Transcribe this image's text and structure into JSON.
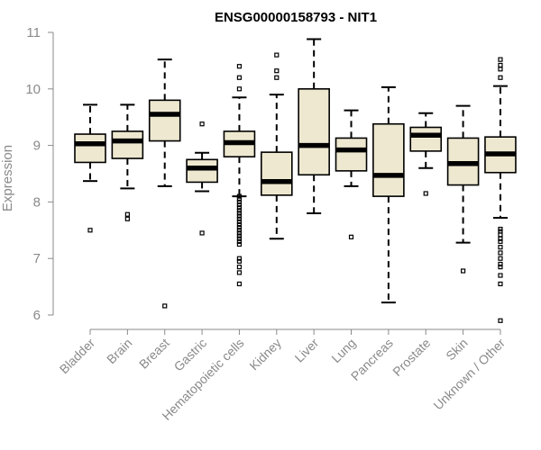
{
  "chart_data": {
    "type": "boxplot",
    "title": "ENSG00000158793 - NIT1",
    "ylabel": "Expression",
    "xlabel": "",
    "ylim": [
      5.8,
      11.1
    ],
    "yticks": [
      6,
      7,
      8,
      9,
      10,
      11
    ],
    "box_color": "#eee8d0",
    "categories": [
      "Bladder",
      "Brain",
      "Breast",
      "Gastric",
      "Hematopoietic cells",
      "Kidney",
      "Liver",
      "Lung",
      "Pancreas",
      "Prostate",
      "Skin",
      "Unknown / Other"
    ],
    "boxes": [
      {
        "category": "Bladder",
        "whisker_low": 8.37,
        "q1": 8.7,
        "median": 9.03,
        "q3": 9.2,
        "whisker_high": 9.72,
        "outliers": [
          7.5
        ]
      },
      {
        "category": "Brain",
        "whisker_low": 8.24,
        "q1": 8.77,
        "median": 9.08,
        "q3": 9.25,
        "whisker_high": 9.72,
        "outliers": [
          7.78,
          7.7
        ]
      },
      {
        "category": "Breast",
        "whisker_low": 8.28,
        "q1": 9.08,
        "median": 9.55,
        "q3": 9.8,
        "whisker_high": 10.52,
        "outliers": [
          6.16
        ]
      },
      {
        "category": "Gastric",
        "whisker_low": 8.19,
        "q1": 8.35,
        "median": 8.6,
        "q3": 8.75,
        "whisker_high": 8.87,
        "outliers": [
          9.38,
          7.45
        ]
      },
      {
        "category": "Hematopoietic cells",
        "whisker_low": 8.1,
        "q1": 8.8,
        "median": 9.05,
        "q3": 9.25,
        "whisker_high": 9.85,
        "outliers": [
          10.4,
          10.2,
          10.0,
          8.1,
          8.05,
          8.0,
          7.95,
          7.9,
          7.85,
          7.8,
          7.75,
          7.7,
          7.65,
          7.6,
          7.55,
          7.5,
          7.45,
          7.4,
          7.35,
          7.3,
          7.25,
          7.0,
          6.95,
          6.85,
          6.75,
          6.55
        ]
      },
      {
        "category": "Kidney",
        "whisker_low": 7.35,
        "q1": 8.12,
        "median": 8.36,
        "q3": 8.88,
        "whisker_high": 9.9,
        "outliers": [
          10.6,
          10.32,
          10.2
        ]
      },
      {
        "category": "Liver",
        "whisker_low": 7.8,
        "q1": 8.48,
        "median": 9.0,
        "q3": 10.0,
        "whisker_high": 10.88,
        "outliers": []
      },
      {
        "category": "Lung",
        "whisker_low": 8.28,
        "q1": 8.55,
        "median": 8.92,
        "q3": 9.13,
        "whisker_high": 9.62,
        "outliers": [
          7.38
        ]
      },
      {
        "category": "Pancreas",
        "whisker_low": 6.22,
        "q1": 8.1,
        "median": 8.47,
        "q3": 9.38,
        "whisker_high": 10.03,
        "outliers": []
      },
      {
        "category": "Prostate",
        "whisker_low": 8.6,
        "q1": 8.9,
        "median": 9.18,
        "q3": 9.32,
        "whisker_high": 9.57,
        "outliers": [
          8.15
        ]
      },
      {
        "category": "Skin",
        "whisker_low": 7.28,
        "q1": 8.3,
        "median": 8.68,
        "q3": 9.13,
        "whisker_high": 9.7,
        "outliers": [
          6.78
        ]
      },
      {
        "category": "Unknown / Other",
        "whisker_low": 7.72,
        "q1": 8.52,
        "median": 8.85,
        "q3": 9.15,
        "whisker_high": 10.05,
        "outliers": [
          10.52,
          10.42,
          10.35,
          10.2,
          7.52,
          7.48,
          7.42,
          7.35,
          7.3,
          7.2,
          7.1,
          7.0,
          6.9,
          6.85,
          6.7,
          6.55,
          5.9
        ]
      }
    ]
  }
}
